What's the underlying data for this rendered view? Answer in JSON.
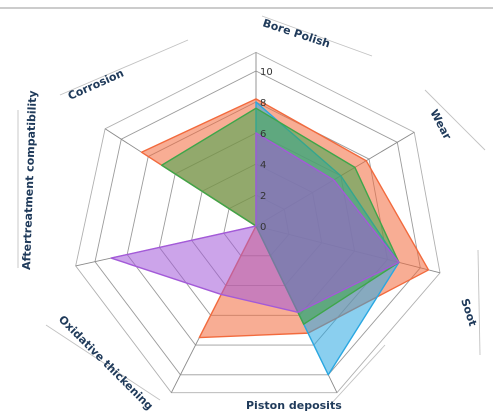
{
  "chart_data": {
    "type": "radar",
    "title": "",
    "axes": [
      "Bore Polish",
      "Wear",
      "Soot",
      "Piston deposits",
      "Oxidative thickening",
      "Aftertreatment compatibility",
      "Corrosion"
    ],
    "rlim": [
      0,
      10
    ],
    "ticks": [
      "0",
      "2",
      "4",
      "6",
      "8",
      "10"
    ],
    "tick_values": [
      0,
      2,
      4,
      6,
      8,
      10
    ],
    "grid": true,
    "legend": "none",
    "series": [
      {
        "color": "#f26a3d",
        "values": [
          8.2,
          7.8,
          10.5,
          7.2,
          7.5,
          0,
          8.5
        ]
      },
      {
        "color": "#2aa7e1",
        "values": [
          8.0,
          6.0,
          8.7,
          10.0,
          0,
          0,
          0
        ]
      },
      {
        "color": "#3ea64a",
        "values": [
          7.6,
          7.0,
          8.7,
          6.6,
          0,
          0,
          7.0
        ]
      },
      {
        "color": "#a35ad8",
        "values": [
          6.0,
          5.5,
          8.7,
          5.8,
          4.6,
          9.0,
          0
        ]
      }
    ]
  }
}
